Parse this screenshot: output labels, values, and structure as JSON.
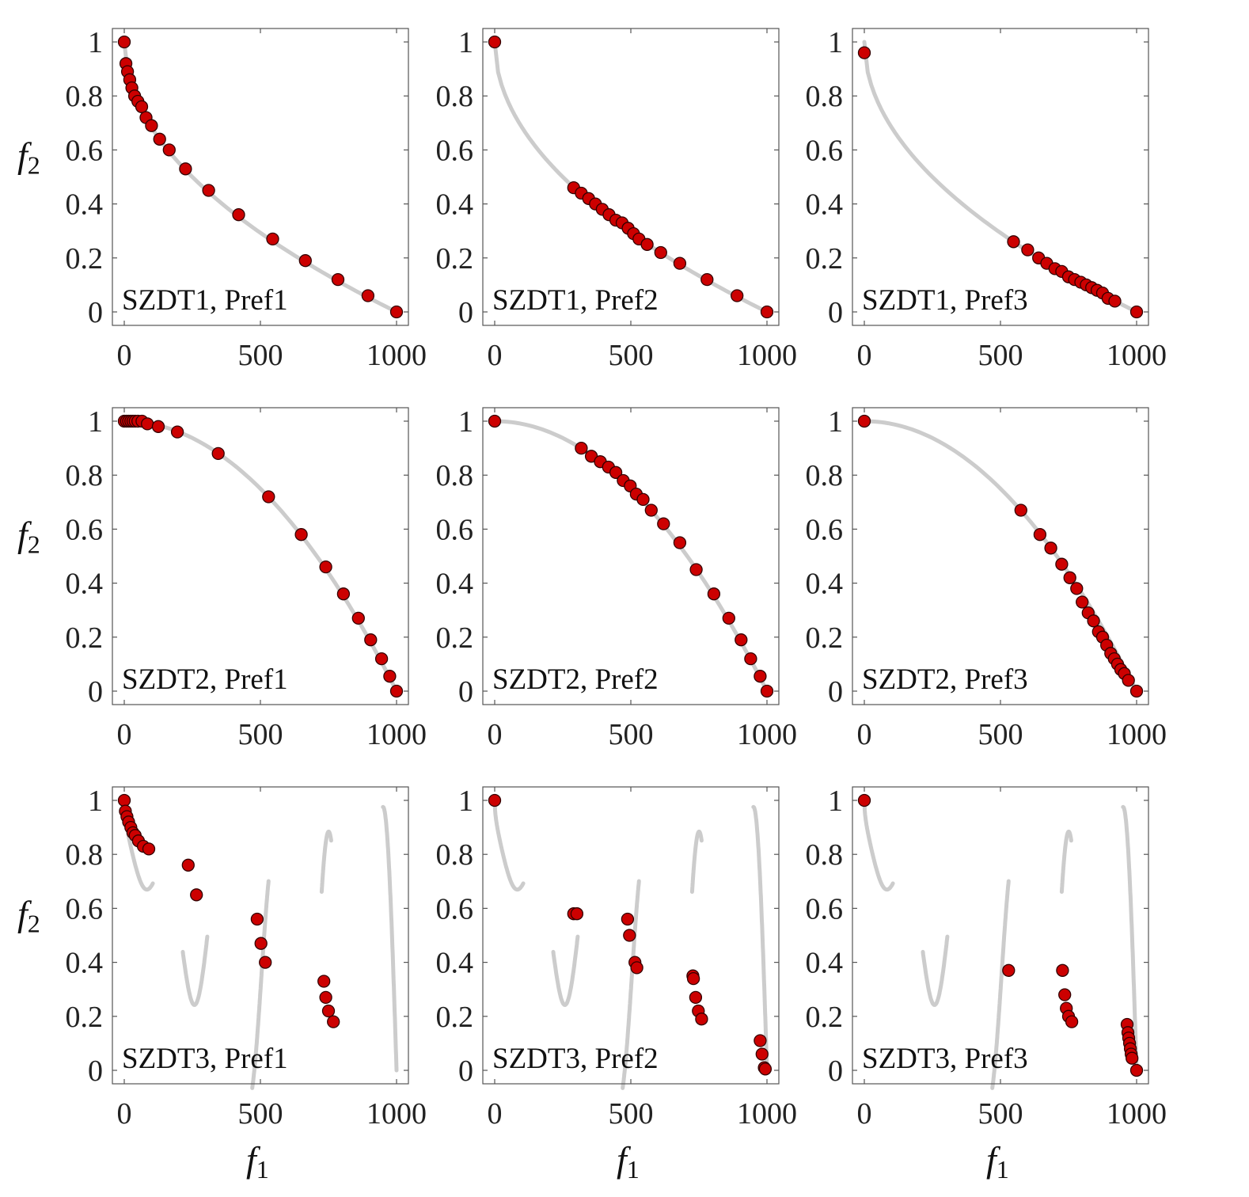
{
  "figure": {
    "xlabel": "f",
    "xlabel_sub": "1",
    "ylabel": "f",
    "ylabel_sub": "2"
  },
  "colors": {
    "front": "#cccccc",
    "marker_fill": "#cc0000",
    "marker_edge": "#330000",
    "axes": "#555555"
  },
  "chart_data": [
    {
      "type": "scatter",
      "label": "SZDT1, Pref1",
      "xlim": [
        0,
        1000
      ],
      "ylim": [
        0,
        1
      ],
      "xticks": [
        "0",
        "500",
        "1000"
      ],
      "yticks": [
        "0",
        "0.2",
        "0.4",
        "0.6",
        "0.8",
        "1"
      ],
      "front": "szdt1",
      "points": [
        [
          0,
          1
        ],
        [
          6,
          0.92
        ],
        [
          12,
          0.89
        ],
        [
          20,
          0.86
        ],
        [
          28,
          0.83
        ],
        [
          38,
          0.8
        ],
        [
          50,
          0.78
        ],
        [
          64,
          0.76
        ],
        [
          80,
          0.72
        ],
        [
          100,
          0.69
        ],
        [
          130,
          0.64
        ],
        [
          165,
          0.6
        ],
        [
          225,
          0.53
        ],
        [
          310,
          0.45
        ],
        [
          420,
          0.36
        ],
        [
          545,
          0.27
        ],
        [
          665,
          0.19
        ],
        [
          785,
          0.12
        ],
        [
          895,
          0.06
        ],
        [
          1000,
          0
        ]
      ]
    },
    {
      "type": "scatter",
      "label": "SZDT1, Pref2",
      "xlim": [
        0,
        1000
      ],
      "ylim": [
        0,
        1
      ],
      "xticks": [
        "0",
        "500",
        "1000"
      ],
      "yticks": [
        "0",
        "0.2",
        "0.4",
        "0.6",
        "0.8",
        "1"
      ],
      "front": "szdt1",
      "points": [
        [
          0,
          1
        ],
        [
          290,
          0.46
        ],
        [
          318,
          0.44
        ],
        [
          345,
          0.42
        ],
        [
          370,
          0.4
        ],
        [
          395,
          0.38
        ],
        [
          420,
          0.36
        ],
        [
          445,
          0.34
        ],
        [
          468,
          0.33
        ],
        [
          490,
          0.31
        ],
        [
          510,
          0.29
        ],
        [
          530,
          0.27
        ],
        [
          560,
          0.25
        ],
        [
          610,
          0.22
        ],
        [
          680,
          0.18
        ],
        [
          780,
          0.12
        ],
        [
          890,
          0.06
        ],
        [
          1000,
          0
        ]
      ]
    },
    {
      "type": "scatter",
      "label": "SZDT1, Pref3",
      "xlim": [
        0,
        1000
      ],
      "ylim": [
        0,
        1
      ],
      "xticks": [
        "0",
        "500",
        "1000"
      ],
      "yticks": [
        "0",
        "0.2",
        "0.4",
        "0.6",
        "0.8",
        "1"
      ],
      "front": "szdt1",
      "points": [
        [
          0,
          0.96
        ],
        [
          548,
          0.26
        ],
        [
          600,
          0.23
        ],
        [
          640,
          0.2
        ],
        [
          670,
          0.18
        ],
        [
          700,
          0.16
        ],
        [
          725,
          0.15
        ],
        [
          750,
          0.13
        ],
        [
          772,
          0.12
        ],
        [
          795,
          0.11
        ],
        [
          815,
          0.1
        ],
        [
          835,
          0.09
        ],
        [
          855,
          0.08
        ],
        [
          875,
          0.07
        ],
        [
          895,
          0.05
        ],
        [
          920,
          0.04
        ],
        [
          1000,
          0
        ]
      ]
    },
    {
      "type": "scatter",
      "label": "SZDT2, Pref1",
      "xlim": [
        0,
        1000
      ],
      "ylim": [
        0,
        1
      ],
      "xticks": [
        "0",
        "500",
        "1000"
      ],
      "yticks": [
        "0",
        "0.2",
        "0.4",
        "0.6",
        "0.8",
        "1"
      ],
      "front": "szdt2",
      "points": [
        [
          0,
          1
        ],
        [
          8,
          1
        ],
        [
          16,
          1
        ],
        [
          24,
          1
        ],
        [
          32,
          1
        ],
        [
          40,
          1
        ],
        [
          50,
          1
        ],
        [
          65,
          1
        ],
        [
          85,
          0.99
        ],
        [
          125,
          0.98
        ],
        [
          195,
          0.96
        ],
        [
          345,
          0.88
        ],
        [
          530,
          0.72
        ],
        [
          650,
          0.58
        ],
        [
          740,
          0.46
        ],
        [
          805,
          0.36
        ],
        [
          860,
          0.27
        ],
        [
          905,
          0.19
        ],
        [
          945,
          0.12
        ],
        [
          975,
          0.055
        ],
        [
          1000,
          0
        ]
      ]
    },
    {
      "type": "scatter",
      "label": "SZDT2, Pref2",
      "xlim": [
        0,
        1000
      ],
      "ylim": [
        0,
        1
      ],
      "xticks": [
        "0",
        "500",
        "1000"
      ],
      "yticks": [
        "0",
        "0.2",
        "0.4",
        "0.6",
        "0.8",
        "1"
      ],
      "front": "szdt2",
      "points": [
        [
          0,
          1
        ],
        [
          318,
          0.9
        ],
        [
          355,
          0.87
        ],
        [
          388,
          0.85
        ],
        [
          418,
          0.83
        ],
        [
          445,
          0.81
        ],
        [
          472,
          0.78
        ],
        [
          498,
          0.76
        ],
        [
          520,
          0.73
        ],
        [
          545,
          0.71
        ],
        [
          575,
          0.67
        ],
        [
          620,
          0.62
        ],
        [
          680,
          0.55
        ],
        [
          740,
          0.45
        ],
        [
          805,
          0.36
        ],
        [
          860,
          0.27
        ],
        [
          905,
          0.19
        ],
        [
          940,
          0.12
        ],
        [
          975,
          0.055
        ],
        [
          1000,
          0
        ]
      ]
    },
    {
      "type": "scatter",
      "label": "SZDT2, Pref3",
      "xlim": [
        0,
        1000
      ],
      "ylim": [
        0,
        1
      ],
      "xticks": [
        "0",
        "500",
        "1000"
      ],
      "yticks": [
        "0",
        "0.2",
        "0.4",
        "0.6",
        "0.8",
        "1"
      ],
      "front": "szdt2",
      "points": [
        [
          0,
          1
        ],
        [
          575,
          0.67
        ],
        [
          645,
          0.58
        ],
        [
          685,
          0.53
        ],
        [
          725,
          0.47
        ],
        [
          755,
          0.42
        ],
        [
          780,
          0.38
        ],
        [
          800,
          0.33
        ],
        [
          822,
          0.29
        ],
        [
          842,
          0.26
        ],
        [
          860,
          0.22
        ],
        [
          875,
          0.2
        ],
        [
          890,
          0.17
        ],
        [
          905,
          0.14
        ],
        [
          918,
          0.12
        ],
        [
          930,
          0.1
        ],
        [
          942,
          0.08
        ],
        [
          955,
          0.065
        ],
        [
          970,
          0.04
        ],
        [
          1000,
          0
        ]
      ]
    },
    {
      "type": "scatter",
      "label": "SZDT3, Pref1",
      "xlim": [
        0,
        1000
      ],
      "ylim": [
        0,
        1
      ],
      "xticks": [
        "0",
        "500",
        "1000"
      ],
      "yticks": [
        "0",
        "0.2",
        "0.4",
        "0.6",
        "0.8",
        "1"
      ],
      "front": "szdt3",
      "points": [
        [
          0,
          1
        ],
        [
          4,
          0.96
        ],
        [
          10,
          0.94
        ],
        [
          16,
          0.92
        ],
        [
          24,
          0.9
        ],
        [
          32,
          0.88
        ],
        [
          40,
          0.87
        ],
        [
          52,
          0.85
        ],
        [
          70,
          0.83
        ],
        [
          90,
          0.82
        ],
        [
          235,
          0.76
        ],
        [
          265,
          0.65
        ],
        [
          488,
          0.56
        ],
        [
          502,
          0.47
        ],
        [
          518,
          0.4
        ],
        [
          733,
          0.33
        ],
        [
          740,
          0.27
        ],
        [
          750,
          0.22
        ],
        [
          768,
          0.18
        ]
      ]
    },
    {
      "type": "scatter",
      "label": "SZDT3, Pref2",
      "xlim": [
        0,
        1000
      ],
      "ylim": [
        0,
        1
      ],
      "xticks": [
        "0",
        "500",
        "1000"
      ],
      "yticks": [
        "0",
        "0.2",
        "0.4",
        "0.6",
        "0.8",
        "1"
      ],
      "front": "szdt3",
      "points": [
        [
          0,
          1
        ],
        [
          290,
          0.58
        ],
        [
          302,
          0.58
        ],
        [
          488,
          0.56
        ],
        [
          495,
          0.5
        ],
        [
          515,
          0.4
        ],
        [
          522,
          0.38
        ],
        [
          728,
          0.35
        ],
        [
          730,
          0.34
        ],
        [
          738,
          0.27
        ],
        [
          748,
          0.22
        ],
        [
          760,
          0.19
        ],
        [
          975,
          0.11
        ],
        [
          982,
          0.06
        ],
        [
          990,
          0.01
        ],
        [
          994,
          0.005
        ]
      ]
    },
    {
      "type": "scatter",
      "label": "SZDT3, Pref3",
      "xlim": [
        0,
        1000
      ],
      "ylim": [
        0,
        1
      ],
      "xticks": [
        "0",
        "500",
        "1000"
      ],
      "yticks": [
        "0",
        "0.2",
        "0.4",
        "0.6",
        "0.8",
        "1"
      ],
      "front": "szdt3",
      "points": [
        [
          0,
          1
        ],
        [
          530,
          0.37
        ],
        [
          728,
          0.37
        ],
        [
          736,
          0.28
        ],
        [
          742,
          0.23
        ],
        [
          750,
          0.2
        ],
        [
          762,
          0.18
        ],
        [
          965,
          0.17
        ],
        [
          968,
          0.14
        ],
        [
          971,
          0.12
        ],
        [
          974,
          0.1
        ],
        [
          977,
          0.08
        ],
        [
          980,
          0.06
        ],
        [
          983,
          0.045
        ],
        [
          1000,
          0
        ]
      ]
    }
  ]
}
